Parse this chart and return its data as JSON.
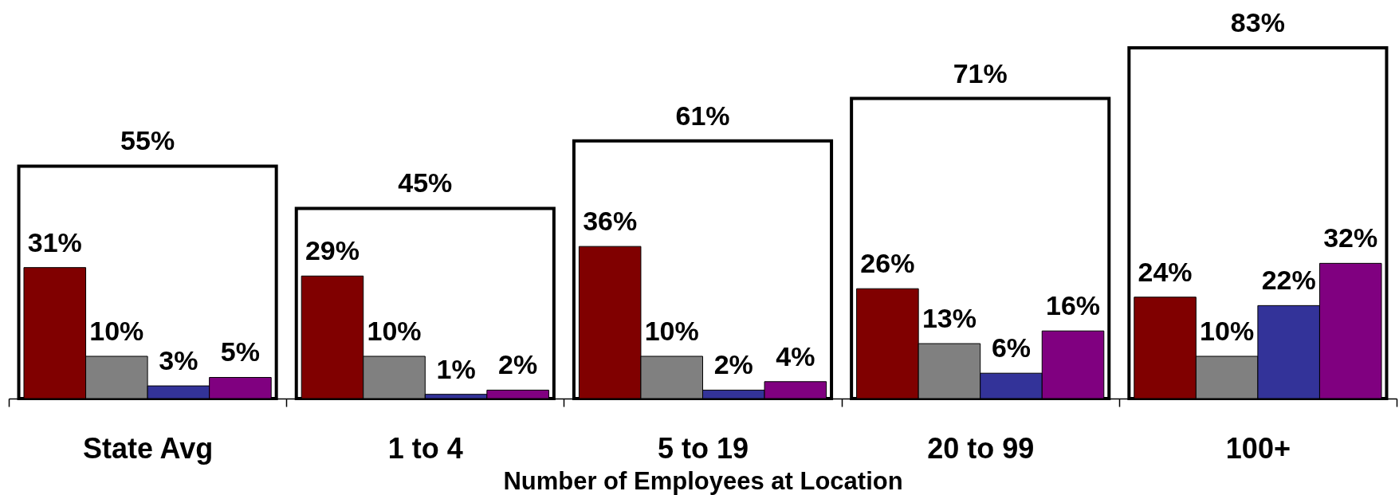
{
  "chart_data": {
    "type": "bar",
    "xlabel": "Number of Employees at Location",
    "categories": [
      "State Avg",
      "1 to 4",
      "5 to 19",
      "20 to 99",
      "100+"
    ],
    "tick_labels": "x",
    "series": [
      {
        "color": "#800000",
        "values": [
          31,
          29,
          36,
          26,
          24
        ],
        "value_labels": [
          "31%",
          "29%",
          "36%",
          "26%",
          "24%"
        ]
      },
      {
        "color": "#808080",
        "values": [
          10,
          10,
          10,
          13,
          10
        ],
        "value_labels": [
          "10%",
          "10%",
          "10%",
          "13%",
          "10%"
        ]
      },
      {
        "color": "#ffffff",
        "values": [
          55,
          45,
          61,
          71,
          83
        ],
        "value_labels": [
          "55%",
          "45%",
          "61%",
          "71%",
          "83%"
        ]
      },
      {
        "color": "#333399",
        "values": [
          3,
          1,
          2,
          6,
          22
        ],
        "value_labels": [
          "3%",
          "1%",
          "2%",
          "6%",
          "22%"
        ]
      },
      {
        "color": "#800080",
        "values": [
          5,
          2,
          4,
          16,
          32
        ],
        "value_labels": [
          "5%",
          "2%",
          "4%",
          "16%",
          "32%"
        ]
      }
    ]
  }
}
